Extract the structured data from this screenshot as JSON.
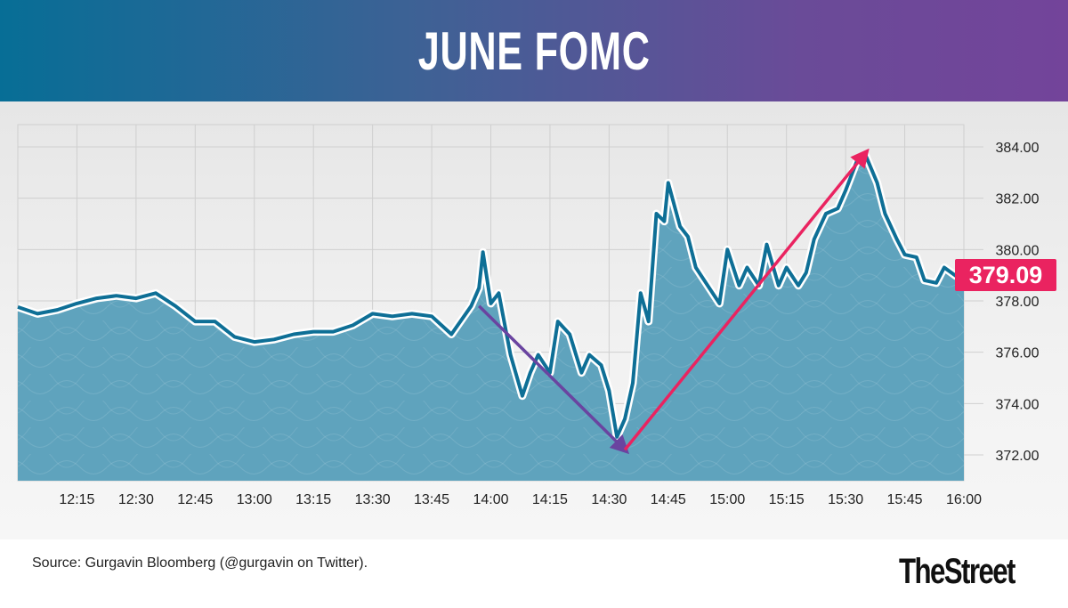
{
  "header": {
    "title": "JUNE FOMC"
  },
  "footer": {
    "source": "Source: Gurgavin Bloomberg (@gurgavin on Twitter).",
    "logo": "TheStreet"
  },
  "colors": {
    "line": "#0e6f96",
    "fill": "#5fa3bd",
    "halo": "#ffffff",
    "last_price_badge": "#ea2360",
    "down_arrow": "#6a44a0",
    "up_arrow": "#ea2360"
  },
  "chart_data": {
    "type": "area",
    "title": "JUNE FOMC",
    "xlabel": "",
    "ylabel": "",
    "x_ticks": [
      "12:15",
      "12:30",
      "12:45",
      "13:00",
      "13:15",
      "13:30",
      "13:45",
      "14:00",
      "14:15",
      "14:30",
      "14:45",
      "15:00",
      "15:15",
      "15:30",
      "15:45",
      "16:00"
    ],
    "y_ticks": [
      "372.00",
      "374.00",
      "376.00",
      "378.00",
      "380.00",
      "382.00",
      "384.00"
    ],
    "xlim": [
      "12:00",
      "16:00"
    ],
    "ylim": [
      371,
      384.8
    ],
    "grid": true,
    "y_axis_side": "right",
    "last_price": "379.09",
    "series": [
      {
        "x": [
          "12:00",
          "12:05",
          "12:10",
          "12:15",
          "12:20",
          "12:25",
          "12:30",
          "12:35",
          "12:40",
          "12:45",
          "12:50",
          "12:55",
          "13:00",
          "13:05",
          "13:10",
          "13:15",
          "13:20",
          "13:25",
          "13:30",
          "13:35",
          "13:40",
          "13:45",
          "13:50",
          "13:55",
          "13:57",
          "13:58",
          "14:00",
          "14:02",
          "14:05",
          "14:08",
          "14:10",
          "14:12",
          "14:15",
          "14:17",
          "14:20",
          "14:23",
          "14:25",
          "14:28",
          "14:30",
          "14:32",
          "14:34",
          "14:36",
          "14:38",
          "14:40",
          "14:42",
          "14:44",
          "14:45",
          "14:48",
          "14:50",
          "14:52",
          "14:55",
          "14:58",
          "15:00",
          "15:03",
          "15:05",
          "15:08",
          "15:10",
          "15:13",
          "15:15",
          "15:18",
          "15:20",
          "15:22",
          "15:25",
          "15:28",
          "15:30",
          "15:33",
          "15:35",
          "15:38",
          "15:40",
          "15:43",
          "15:45",
          "15:48",
          "15:50",
          "15:53",
          "15:55",
          "15:58",
          "16:00"
        ],
        "y": [
          377.76,
          377.5,
          377.65,
          377.9,
          378.1,
          378.2,
          378.1,
          378.3,
          377.8,
          377.2,
          377.2,
          376.6,
          376.4,
          376.5,
          376.7,
          376.8,
          376.8,
          377.05,
          377.5,
          377.4,
          377.5,
          377.4,
          376.7,
          377.8,
          378.5,
          379.9,
          377.9,
          378.3,
          375.9,
          374.3,
          375.2,
          375.9,
          375.2,
          377.2,
          376.7,
          375.2,
          375.9,
          375.5,
          374.5,
          372.7,
          373.4,
          374.8,
          378.3,
          377.2,
          381.4,
          381.1,
          382.6,
          380.9,
          380.5,
          379.3,
          378.6,
          377.9,
          380.0,
          378.6,
          379.3,
          378.6,
          380.2,
          378.6,
          379.3,
          378.6,
          379.1,
          380.4,
          381.4,
          381.6,
          382.3,
          383.5,
          383.7,
          382.6,
          381.4,
          380.4,
          379.8,
          379.7,
          378.8,
          378.7,
          379.3,
          378.97,
          379.09
        ]
      }
    ],
    "annotations": [
      {
        "type": "arrow",
        "from": [
          "13:57",
          377.8
        ],
        "to": [
          "14:34",
          372.2
        ],
        "color": "#6a44a0"
      },
      {
        "type": "arrow",
        "from": [
          "14:34",
          372.2
        ],
        "to": [
          "15:35",
          383.75
        ],
        "color": "#ea2360"
      }
    ]
  }
}
